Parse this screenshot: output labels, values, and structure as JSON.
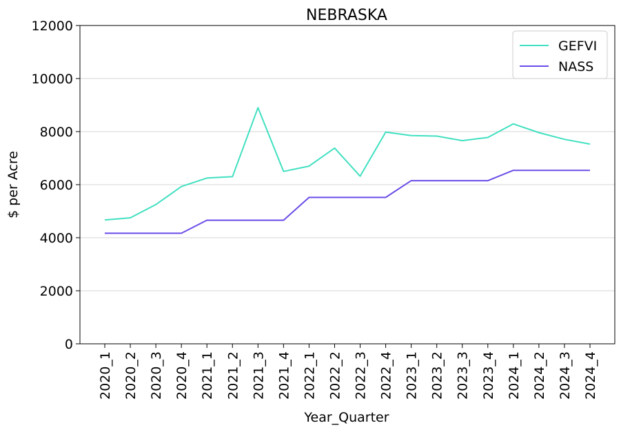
{
  "chart_data": {
    "type": "line",
    "title": "NEBRASKA",
    "xlabel": "Year_Quarter",
    "ylabel": "$ per Acre",
    "ylim": [
      0,
      12000
    ],
    "yticks": [
      0,
      2000,
      4000,
      6000,
      8000,
      10000,
      12000
    ],
    "grid": "horizontal",
    "legend_position": "top-right",
    "categories": [
      "2020_1",
      "2020_2",
      "2020_3",
      "2020_4",
      "2021_1",
      "2021_2",
      "2021_3",
      "2021_4",
      "2022_1",
      "2022_2",
      "2022_3",
      "2022_4",
      "2023_1",
      "2023_2",
      "2023_3",
      "2023_4",
      "2024_1",
      "2024_2",
      "2024_3",
      "2024_4"
    ],
    "series": [
      {
        "name": "GEFVI",
        "color": "#40e0c0",
        "values": [
          4670,
          4750,
          5250,
          5930,
          6250,
          6300,
          8900,
          6500,
          6700,
          7380,
          6320,
          7980,
          7850,
          7830,
          7660,
          7780,
          8290,
          7960,
          7710,
          7530
        ]
      },
      {
        "name": "NASS",
        "color": "#6a4be8",
        "values": [
          4170,
          4170,
          4170,
          4170,
          4660,
          4660,
          4660,
          4660,
          5520,
          5520,
          5520,
          5520,
          6150,
          6150,
          6150,
          6150,
          6540,
          6540,
          6540,
          6540
        ]
      }
    ]
  }
}
